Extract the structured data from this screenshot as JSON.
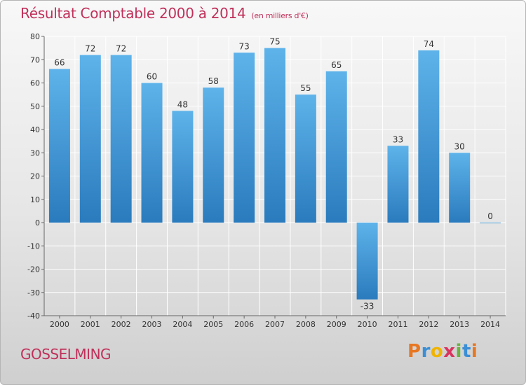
{
  "title": "Résultat Comptable 2000 à 2014",
  "unit_label": "(en milliers d'€)",
  "commune": "GOSSELMING",
  "logo": {
    "letters": [
      "P",
      "r",
      "o",
      "x",
      "i",
      "t",
      "i"
    ],
    "colors": [
      "#e87722",
      "#3a8fd6",
      "#f0b400",
      "#d8345f",
      "#6cb33f",
      "#3a8fd6",
      "#e87722"
    ]
  },
  "colors": {
    "bar_light": "#5eb3ea",
    "bar_dark": "#2a7bbd",
    "title": "#c0305a",
    "grid": "#ffffff"
  },
  "chart_data": {
    "type": "bar",
    "categories": [
      "2000",
      "2001",
      "2002",
      "2003",
      "2004",
      "2005",
      "2006",
      "2007",
      "2008",
      "2009",
      "2010",
      "2011",
      "2012",
      "2013",
      "2014"
    ],
    "values": [
      66,
      72,
      72,
      60,
      48,
      58,
      73,
      75,
      55,
      65,
      -33,
      33,
      74,
      30,
      0
    ],
    "title": "Résultat Comptable 2000 à 2014",
    "xlabel": "",
    "ylabel": "",
    "ylim": [
      -40,
      80
    ],
    "yticks": [
      80,
      70,
      60,
      50,
      40,
      30,
      20,
      10,
      0,
      -10,
      -20,
      -30,
      -40
    ],
    "grid": true
  }
}
